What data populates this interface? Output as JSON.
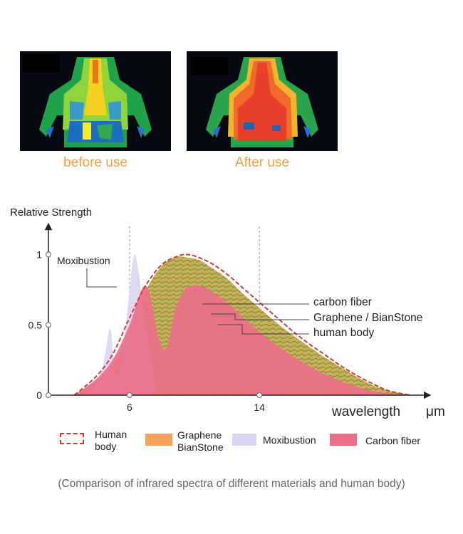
{
  "photos": {
    "before_caption": "before use",
    "after_caption": "After use"
  },
  "chart_data": {
    "type": "area",
    "ylabel": "Relative Strength",
    "xlabel": "wavelength",
    "xunit": "μm",
    "xlim": [
      1,
      24
    ],
    "ylim": [
      0,
      1.2
    ],
    "xticks": [
      6,
      14
    ],
    "yticks": [
      {
        "value": 0,
        "label": "0"
      },
      {
        "value": 0.5,
        "label": "0.5"
      },
      {
        "value": 1,
        "label": "1"
      }
    ],
    "guidelines_x": [
      6,
      14
    ],
    "series": [
      {
        "name": "Graphene / BianStone",
        "color": "#f6a15c",
        "x": [
          2.6,
          4,
          5,
          6,
          7,
          8,
          8.8,
          9.5,
          10.3,
          11,
          12,
          13,
          14,
          15,
          16,
          17,
          18,
          19,
          20,
          21,
          22,
          23.3
        ],
        "y": [
          0,
          0.1,
          0.22,
          0.42,
          0.74,
          0.92,
          0.98,
          0.98,
          0.96,
          0.91,
          0.83,
          0.72,
          0.62,
          0.52,
          0.43,
          0.35,
          0.27,
          0.2,
          0.13,
          0.07,
          0.03,
          0
        ]
      },
      {
        "name": "Moxibustion",
        "color": "#d9d4f1",
        "x": [
          3.5,
          4.3,
          4.8,
          5.1,
          5.5,
          6,
          6.3,
          6.6,
          6.9,
          7.3,
          7.7
        ],
        "y": [
          0,
          0.18,
          0.47,
          0.18,
          0.22,
          0.75,
          1.0,
          0.84,
          0.55,
          0.28,
          0
        ]
      },
      {
        "name": "Carbon fiber",
        "color": "#ec6f8a",
        "x": [
          2.6,
          4,
          5,
          6,
          7,
          7.8,
          8.3,
          8.8,
          9.4,
          10,
          10.5,
          11,
          12,
          13,
          14,
          15,
          16,
          17,
          18,
          19,
          20,
          21,
          22,
          23.3
        ],
        "y": [
          0,
          0.12,
          0.26,
          0.5,
          0.78,
          0.4,
          0.34,
          0.6,
          0.75,
          0.78,
          0.77,
          0.74,
          0.66,
          0.55,
          0.45,
          0.36,
          0.28,
          0.21,
          0.15,
          0.1,
          0.06,
          0.03,
          0.01,
          0
        ]
      },
      {
        "name": "human body",
        "color": "#d43a3a",
        "x": [
          2.6,
          4,
          5,
          6,
          7,
          8,
          9,
          9.5,
          10,
          11,
          12,
          13,
          14,
          15,
          16,
          17,
          18,
          19,
          20,
          21,
          22,
          23.3
        ],
        "y": [
          0,
          0.14,
          0.3,
          0.55,
          0.78,
          0.93,
          0.99,
          1.0,
          0.99,
          0.94,
          0.86,
          0.76,
          0.66,
          0.56,
          0.46,
          0.37,
          0.29,
          0.21,
          0.14,
          0.08,
          0.03,
          0
        ]
      }
    ],
    "annotations": [
      {
        "text": "Moxibustion",
        "x": 6.4,
        "y": 0.84
      },
      {
        "text": "carbon fiber",
        "x": 13.5,
        "y": 0.72
      },
      {
        "text": "Graphene / BianStone",
        "x": 12.5,
        "y": 0.66
      },
      {
        "text": "human body",
        "x": 14.5,
        "y": 0.56
      }
    ],
    "legend": [
      {
        "label": "Human\nbody",
        "style": "dashed-box",
        "color": "#d43a3a"
      },
      {
        "label": "Graphene\nBianStone",
        "color": "#f6a15c"
      },
      {
        "label": "Moxibustion",
        "color": "#d9d4f1"
      },
      {
        "label": "Carbon fiber",
        "color": "#ec6f8a"
      }
    ],
    "note": "(Comparison of infrared spectra of different materials and human body)"
  }
}
